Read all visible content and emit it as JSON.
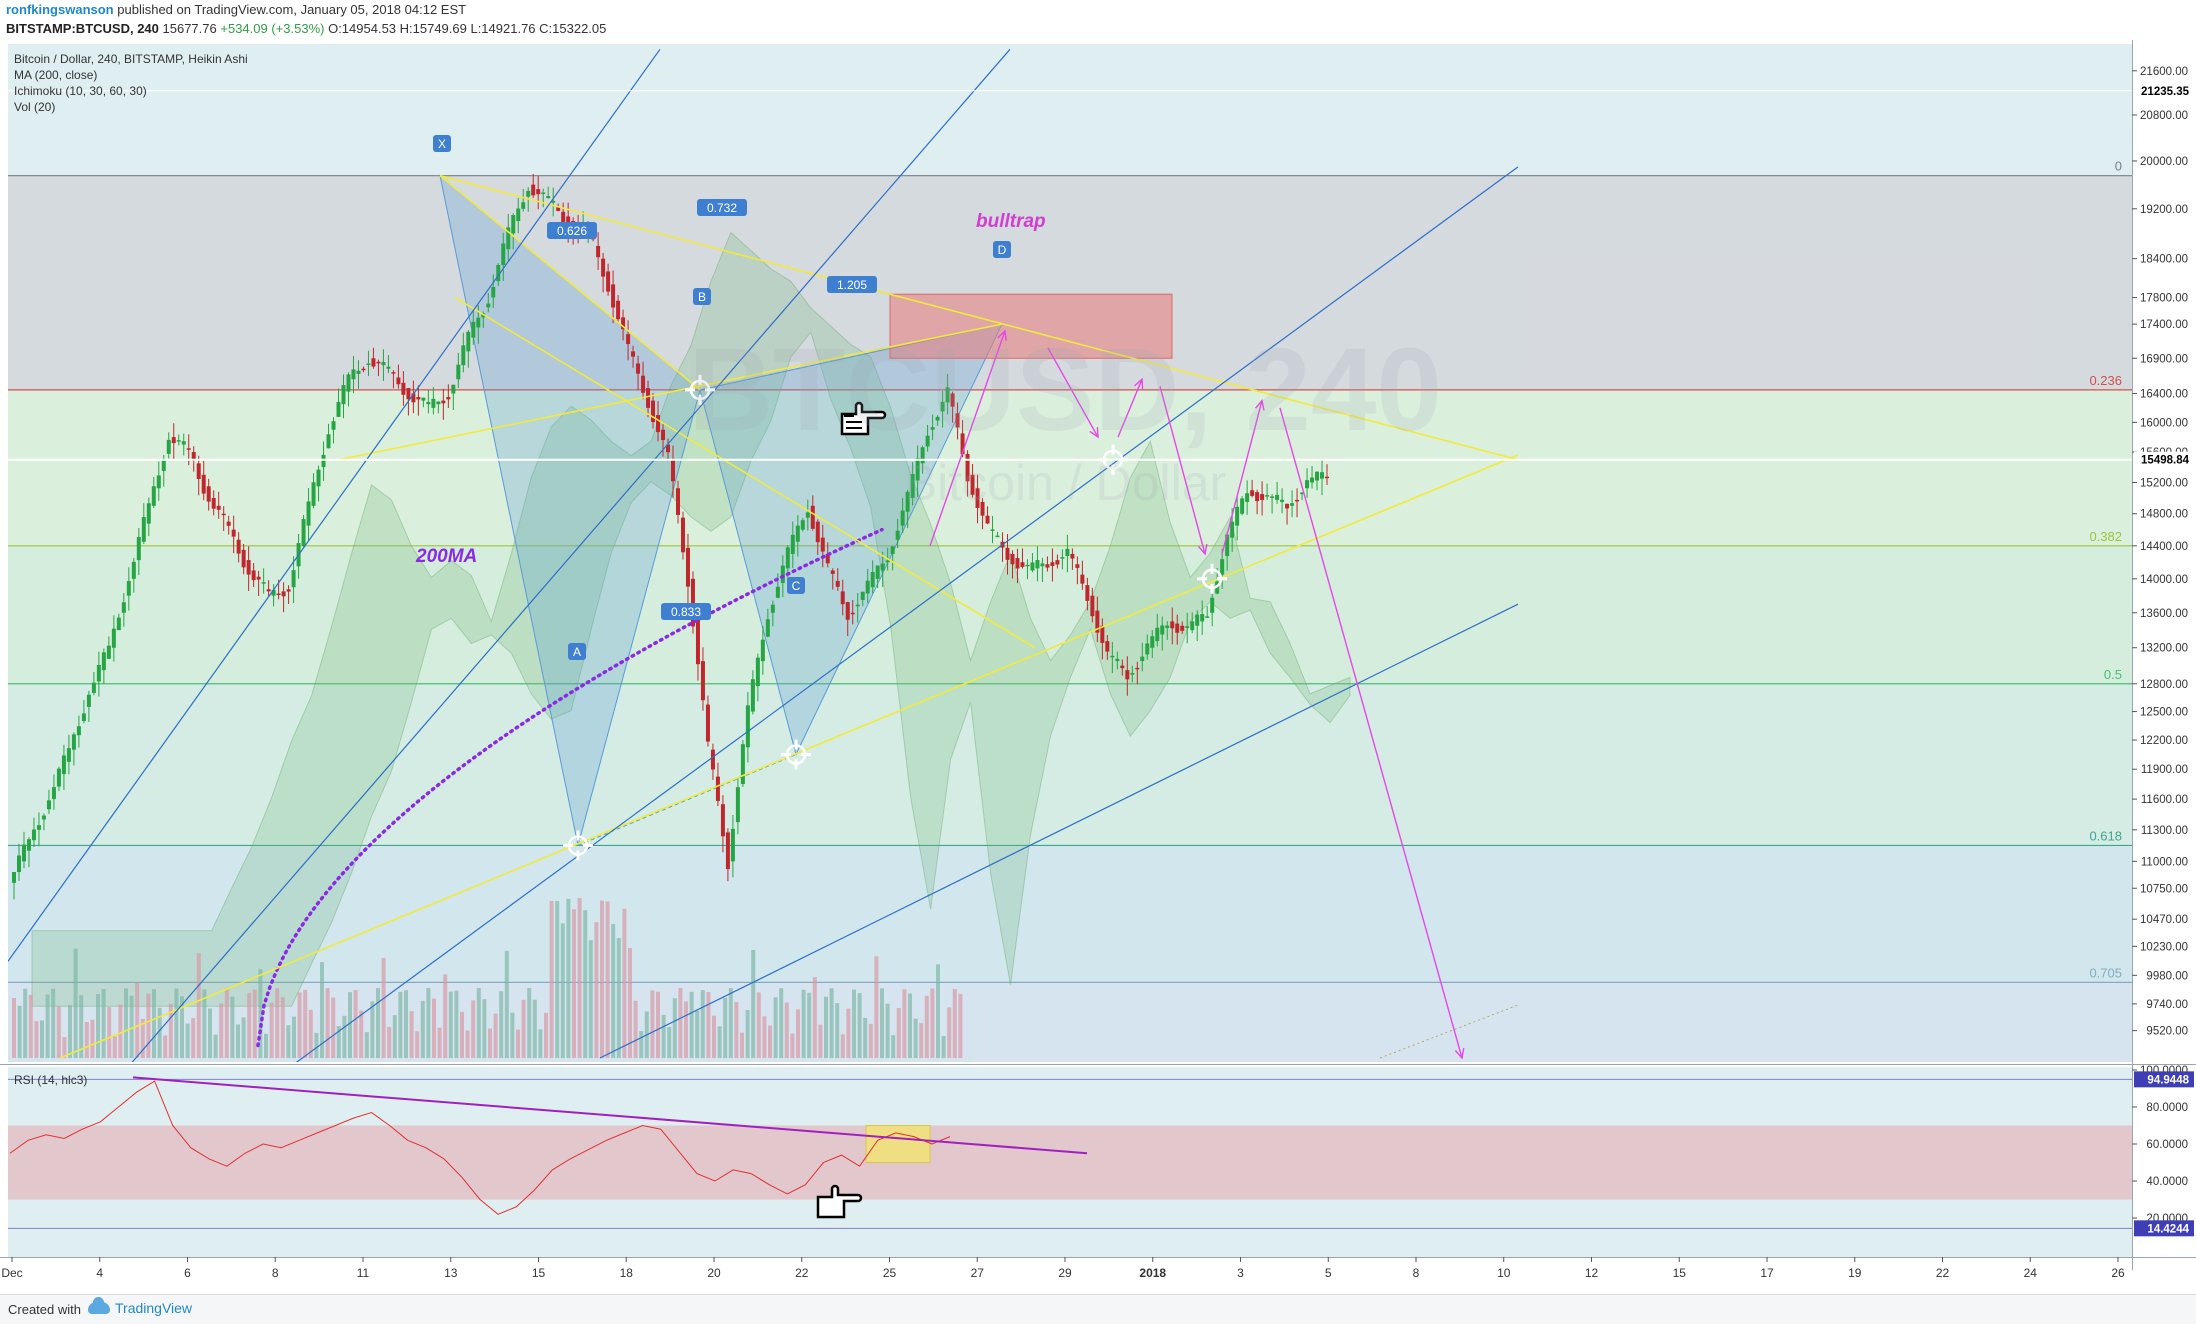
{
  "header": {
    "user": "ronfkingswanson",
    "published": "published on TradingView.com, January 05, 2018 04:12 EST",
    "symbol": "BITSTAMP:BTCUSD, 240",
    "last": "15677.76",
    "change": "+534.09 (+3.53%)",
    "ohlc": "O:14954.53 H:15749.69 L:14921.76 C:15322.05"
  },
  "legend": {
    "title": "Bitcoin / Dollar, 240, BITSTAMP, Heikin Ashi",
    "ma": "MA (200, close)",
    "ichimoku": "Ichimoku (10, 30, 60, 30)",
    "vol": "Vol (20)",
    "rsi": "RSI (14, hlc3)"
  },
  "watermark": {
    "symbol": "BTCUSD, 240",
    "name": "Bitcoin / Dollar"
  },
  "annotations": {
    "bulltrap": "bulltrap",
    "ma200": "200MA",
    "ratio_xb": "0.626",
    "ratio_xd": "0.732",
    "ratio_bd": "1.205",
    "ratio_ac": "0.833",
    "points": [
      "X",
      "A",
      "B",
      "C",
      "D"
    ]
  },
  "fib_labels": [
    "0.236",
    "0.382",
    "0.5",
    "0.618",
    "0.705",
    "0"
  ],
  "price_badges": {
    "top": "21235.35",
    "current": "15498.84"
  },
  "rsi_badges": {
    "high": "94.9448",
    "low": "14.4244"
  },
  "colors": {
    "background": "#dfeef0",
    "up_candle": "#26a544",
    "down_candle": "#c0272d",
    "pattern_fill": "#5a9bd5",
    "trendline_yellow": "#f2ea3b",
    "trendline_blue": "#2d6fc6",
    "arrows_magenta": "#e548e5",
    "ma_dotted": "#8a2be2",
    "rsi_line": "#e03232",
    "rsi_trendline": "#a020c0",
    "bulltrap_box": "#e77a7a"
  },
  "chart_data": [
    {
      "type": "line",
      "title": "Bitcoin / Dollar, 240, BITSTAMP, Heikin Ashi",
      "x_ticks": [
        "Dec",
        "4",
        "6",
        "8",
        "11",
        "13",
        "15",
        "18",
        "20",
        "22",
        "25",
        "27",
        "29",
        "2018",
        "3",
        "5",
        "8",
        "10",
        "12",
        "15",
        "17",
        "19",
        "22",
        "24",
        "26"
      ],
      "y_ticks": [
        "21600.00",
        "20800.00",
        "20000.00",
        "19200.00",
        "18400.00",
        "17800.00",
        "17400.00",
        "16900.00",
        "16400.00",
        "16000.00",
        "15600.00",
        "15200.00",
        "14800.00",
        "14400.00",
        "14000.00",
        "13600.00",
        "13200.00",
        "12800.00",
        "12500.00",
        "12200.00",
        "11900.00",
        "11600.00",
        "11300.00",
        "11000.00",
        "10750.00",
        "10470.00",
        "10230.00",
        "9980.00",
        "9740.00",
        "9520.00"
      ],
      "ylim": [
        9300,
        21800
      ],
      "y_scale": "log",
      "series": [
        {
          "values": [
            10800,
            11200,
            11600,
            12100,
            12700,
            13200,
            14000,
            14900,
            15800,
            15600,
            15000,
            14600,
            14100,
            13800,
            13900,
            14900,
            15900,
            16600,
            16900,
            16700,
            16400,
            16200,
            16400,
            17200,
            17800,
            18800,
            19600,
            19300,
            19000,
            18800,
            18000,
            17000,
            16300,
            15500,
            14000,
            12100,
            11000,
            12500,
            13600,
            14300,
            14900,
            14100,
            13600,
            13900,
            14300,
            15000,
            15900,
            16400,
            15300,
            14600,
            14300,
            14100,
            14200,
            14300,
            13800,
            13100,
            12900,
            13200,
            13500,
            13400,
            13600,
            14500,
            15100,
            15000,
            14900,
            15200,
            15300
          ]
        }
      ],
      "ichimoku": "cloud",
      "moving_average": {
        "name": "200MA",
        "period": 200
      },
      "harmonic_pattern": {
        "points": {
          "X": 19750,
          "A": 11150,
          "B": 16450,
          "C": 12050,
          "D": 17400
        },
        "ratios": {
          "XB": 0.626,
          "XD": 0.732,
          "BD": 1.205,
          "AC": 0.833
        }
      },
      "fib_levels": [
        {
          "label": "0",
          "price": 19750
        },
        {
          "label": "0.236",
          "price": 16450
        },
        {
          "label": "0.382",
          "price": 14400
        },
        {
          "label": "0.5",
          "price": 12800
        },
        {
          "label": "0.618",
          "price": 11150
        },
        {
          "label": "0.705",
          "price": 9920
        }
      ],
      "grid": false
    },
    {
      "type": "line",
      "title": "RSI (14, hlc3)",
      "y_ticks": [
        "100.0000",
        "80.0000",
        "60.0000",
        "40.0000",
        "20.0000"
      ],
      "ylim": [
        0,
        100
      ],
      "bands": [
        30,
        70
      ],
      "values": [
        55,
        62,
        65,
        63,
        68,
        72,
        80,
        88,
        94,
        70,
        58,
        52,
        48,
        55,
        60,
        58,
        62,
        66,
        70,
        74,
        77,
        70,
        62,
        58,
        52,
        42,
        30,
        22,
        26,
        35,
        46,
        52,
        57,
        62,
        66,
        70,
        68,
        56,
        44,
        40,
        46,
        44,
        38,
        33,
        38,
        50,
        54,
        48,
        62,
        66,
        64,
        60,
        64
      ]
    }
  ]
}
